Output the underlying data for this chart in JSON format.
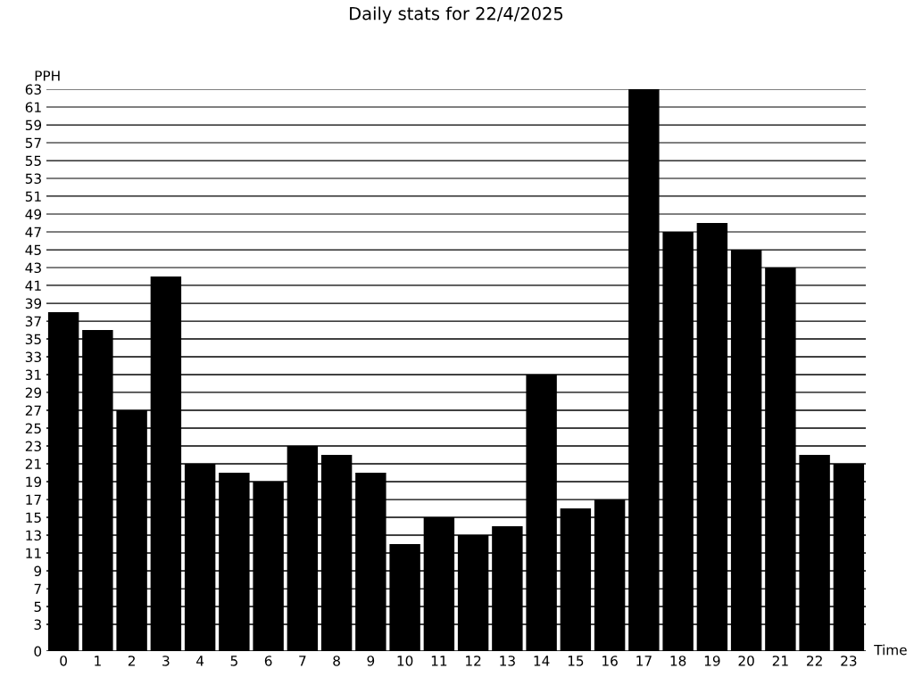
{
  "chart_data": {
    "type": "bar",
    "title": "Daily stats for 22/4/2025",
    "xlabel": "Time",
    "ylabel": "PPH",
    "categories": [
      "0",
      "1",
      "2",
      "3",
      "4",
      "5",
      "6",
      "7",
      "8",
      "9",
      "10",
      "11",
      "12",
      "13",
      "14",
      "15",
      "16",
      "17",
      "18",
      "19",
      "20",
      "21",
      "22",
      "23"
    ],
    "values": [
      38,
      36,
      27,
      42,
      21,
      20,
      19,
      23,
      22,
      20,
      12,
      15,
      13,
      14,
      31,
      16,
      17,
      63,
      47,
      48,
      45,
      43,
      22,
      21
    ],
    "color": "#000000",
    "ylim": [
      0,
      63
    ],
    "yticks": [
      0,
      3,
      5,
      7,
      9,
      11,
      13,
      15,
      17,
      19,
      21,
      23,
      25,
      27,
      29,
      31,
      33,
      35,
      37,
      39,
      41,
      43,
      45,
      47,
      49,
      51,
      53,
      55,
      57,
      59,
      61,
      63
    ],
    "grid": "y",
    "legend": false
  }
}
